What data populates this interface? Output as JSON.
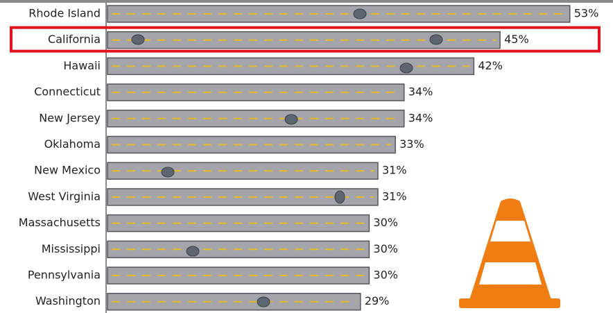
{
  "chart_data": {
    "type": "bar",
    "orientation": "horizontal",
    "categories": [
      "Rhode Island",
      "California",
      "Hawaii",
      "Connecticut",
      "New Jersey",
      "Oklahoma",
      "New Mexico",
      "West Virginia",
      "Massachusetts",
      "Mississippi",
      "Pennsylvania",
      "Washington"
    ],
    "values": [
      53,
      45,
      42,
      34,
      34,
      33,
      31,
      31,
      30,
      30,
      30,
      29
    ],
    "value_labels": [
      "53%",
      "45%",
      "42%",
      "34%",
      "34%",
      "33%",
      "31%",
      "31%",
      "30%",
      "30%",
      "30%",
      "29%"
    ],
    "color": "#a4a5ab",
    "highlight": "California",
    "highlight_color": "#e3131b"
  }
}
